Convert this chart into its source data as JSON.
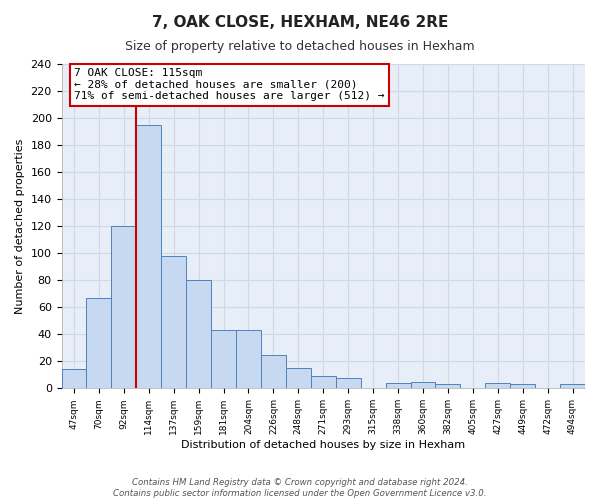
{
  "title": "7, OAK CLOSE, HEXHAM, NE46 2RE",
  "subtitle": "Size of property relative to detached houses in Hexham",
  "xlabel": "Distribution of detached houses by size in Hexham",
  "ylabel": "Number of detached properties",
  "bar_labels": [
    "47sqm",
    "70sqm",
    "92sqm",
    "114sqm",
    "137sqm",
    "159sqm",
    "181sqm",
    "204sqm",
    "226sqm",
    "248sqm",
    "271sqm",
    "293sqm",
    "315sqm",
    "338sqm",
    "360sqm",
    "382sqm",
    "405sqm",
    "427sqm",
    "449sqm",
    "472sqm",
    "494sqm"
  ],
  "bar_values": [
    14,
    67,
    120,
    195,
    98,
    80,
    43,
    43,
    25,
    15,
    9,
    8,
    0,
    4,
    5,
    3,
    0,
    4,
    3,
    0,
    3
  ],
  "bar_color": "#c6d9f1",
  "bar_edge_color": "#4f81bd",
  "ylim": [
    0,
    240
  ],
  "yticks": [
    0,
    20,
    40,
    60,
    80,
    100,
    120,
    140,
    160,
    180,
    200,
    220,
    240
  ],
  "property_line_color": "#cc0000",
  "property_bar_index": 3,
  "annotation_line1": "7 OAK CLOSE: 115sqm",
  "annotation_line2": "← 28% of detached houses are smaller (200)",
  "annotation_line3": "71% of semi-detached houses are larger (512) →",
  "annotation_box_color": "#cc0000",
  "annotation_box_fill": "#ffffff",
  "footnote_line1": "Contains HM Land Registry data © Crown copyright and database right 2024.",
  "footnote_line2": "Contains public sector information licensed under the Open Government Licence v3.0.",
  "background_color": "#ffffff",
  "grid_color": "#d0d8e8"
}
